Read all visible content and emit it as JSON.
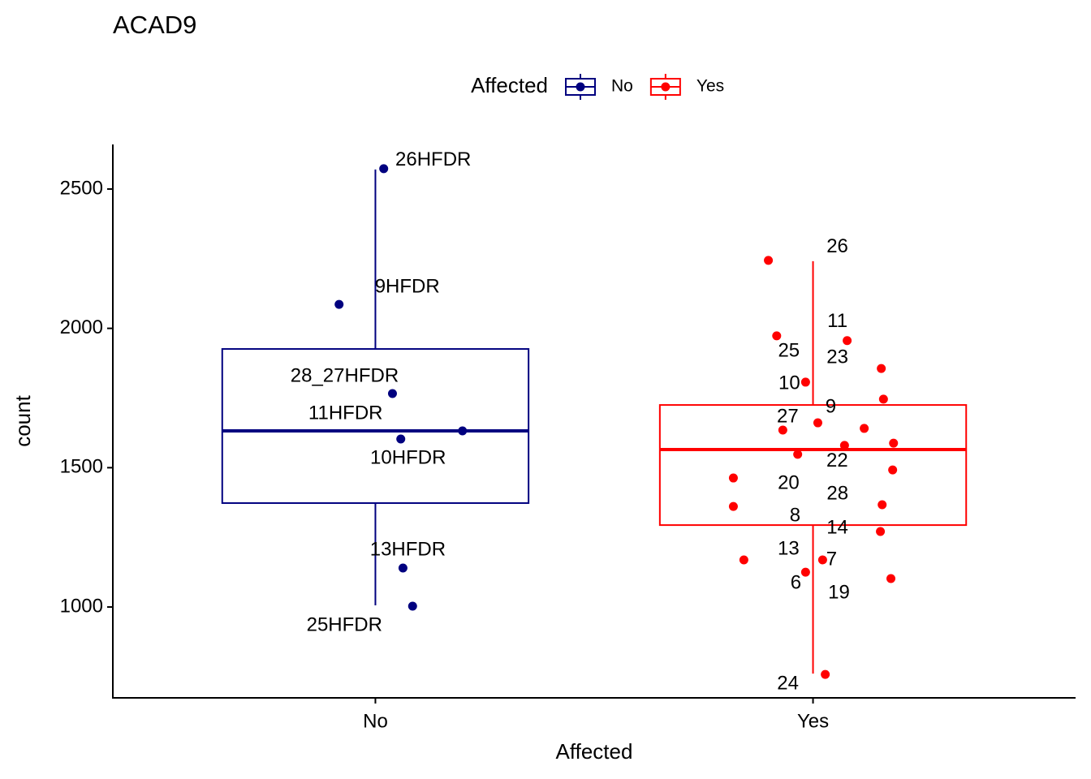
{
  "chart_data": {
    "type": "boxplot",
    "title": "ACAD9",
    "x_label": "Affected",
    "y_label": "count",
    "legend_title": "Affected",
    "legend_position": "top",
    "categories": [
      "No",
      "Yes"
    ],
    "ylim": [
      674,
      2660
    ],
    "yticks": [
      1000,
      1500,
      2000,
      2500
    ],
    "series": [
      {
        "name": "No",
        "color": "#00007f",
        "box": {
          "lower_whisker": 1006,
          "q1": 1373,
          "median": 1632,
          "q3": 1926,
          "upper_whisker": 2570
        },
        "points": {
          "x": [
            1.019,
            0.917,
            1.039,
            1.058,
            1.199,
            1.063,
            1.085
          ],
          "values": [
            2573,
            2086,
            1766,
            1603,
            1632,
            1140,
            1003
          ],
          "labels": [
            "26HFDR",
            "9HFDR",
            "28_27HFDR",
            "11HFDR",
            "10HFDR",
            "13HFDR",
            "25HFDR"
          ]
        }
      },
      {
        "name": "Yes",
        "color": "#ff0000",
        "box": {
          "lower_whisker": 761,
          "q1": 1294,
          "median": 1565,
          "q3": 1725,
          "upper_whisker": 2241
        },
        "points": {
          "x": [
            1.898,
            1.917,
            2.078,
            2.156,
            1.983,
            2.011,
            1.931,
            2.072,
            1.818,
            2.158,
            1.818,
            2.154,
            1.842,
            2.022,
            1.983,
            2.178,
            2.028,
            2.161,
            2.117,
            2.184,
            1.965,
            2.182
          ],
          "values": [
            2244,
            1973,
            1956,
            1856,
            1807,
            1661,
            1635,
            1580,
            1463,
            1367,
            1361,
            1271,
            1169,
            1169,
            1125,
            1102,
            758,
            1746,
            1641,
            1588,
            1548,
            1492
          ],
          "labels": [
            "26",
            "25",
            "11",
            "23",
            "10",
            "9",
            "27",
            "22",
            "20",
            "28",
            "8",
            "14",
            "13",
            "7",
            "6",
            "19",
            "24",
            null,
            null,
            null,
            null,
            null
          ]
        }
      }
    ]
  }
}
